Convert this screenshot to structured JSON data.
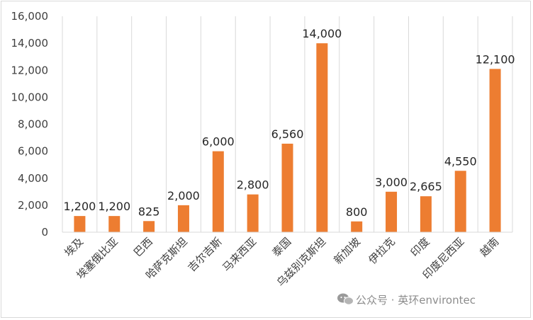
{
  "chart_data": {
    "type": "bar",
    "title": "",
    "xlabel": "",
    "ylabel": "",
    "ylim": [
      0,
      16000
    ],
    "yticks": [
      0,
      2000,
      4000,
      6000,
      8000,
      10000,
      12000,
      14000,
      16000
    ],
    "ytick_labels": [
      "0",
      "2,000",
      "4,000",
      "6,000",
      "8,000",
      "10,000",
      "12,000",
      "14,000",
      "16,000"
    ],
    "grid": "vertical lines between categories",
    "bar_color": "#ED7D31",
    "categories": [
      "埃及",
      "埃塞俄比亚",
      "巴西",
      "哈萨克斯坦",
      "吉尔吉斯",
      "马来西亚",
      "泰国",
      "乌兹别克斯坦",
      "新加坡",
      "伊拉克",
      "印度",
      "印度尼西亚",
      "越南"
    ],
    "values": [
      1200,
      1200,
      825,
      2000,
      6000,
      2800,
      6560,
      14000,
      800,
      3000,
      2665,
      4550,
      12100
    ],
    "value_labels": [
      "1,200",
      "1,200",
      "825",
      "2,000",
      "6,000",
      "2,800",
      "6,560",
      "14,000",
      "800",
      "3,000",
      "2,665",
      "4,550",
      "12,100"
    ]
  },
  "watermark": {
    "icon": "wechat-icon",
    "text": "公众号 · 英环environtec"
  }
}
